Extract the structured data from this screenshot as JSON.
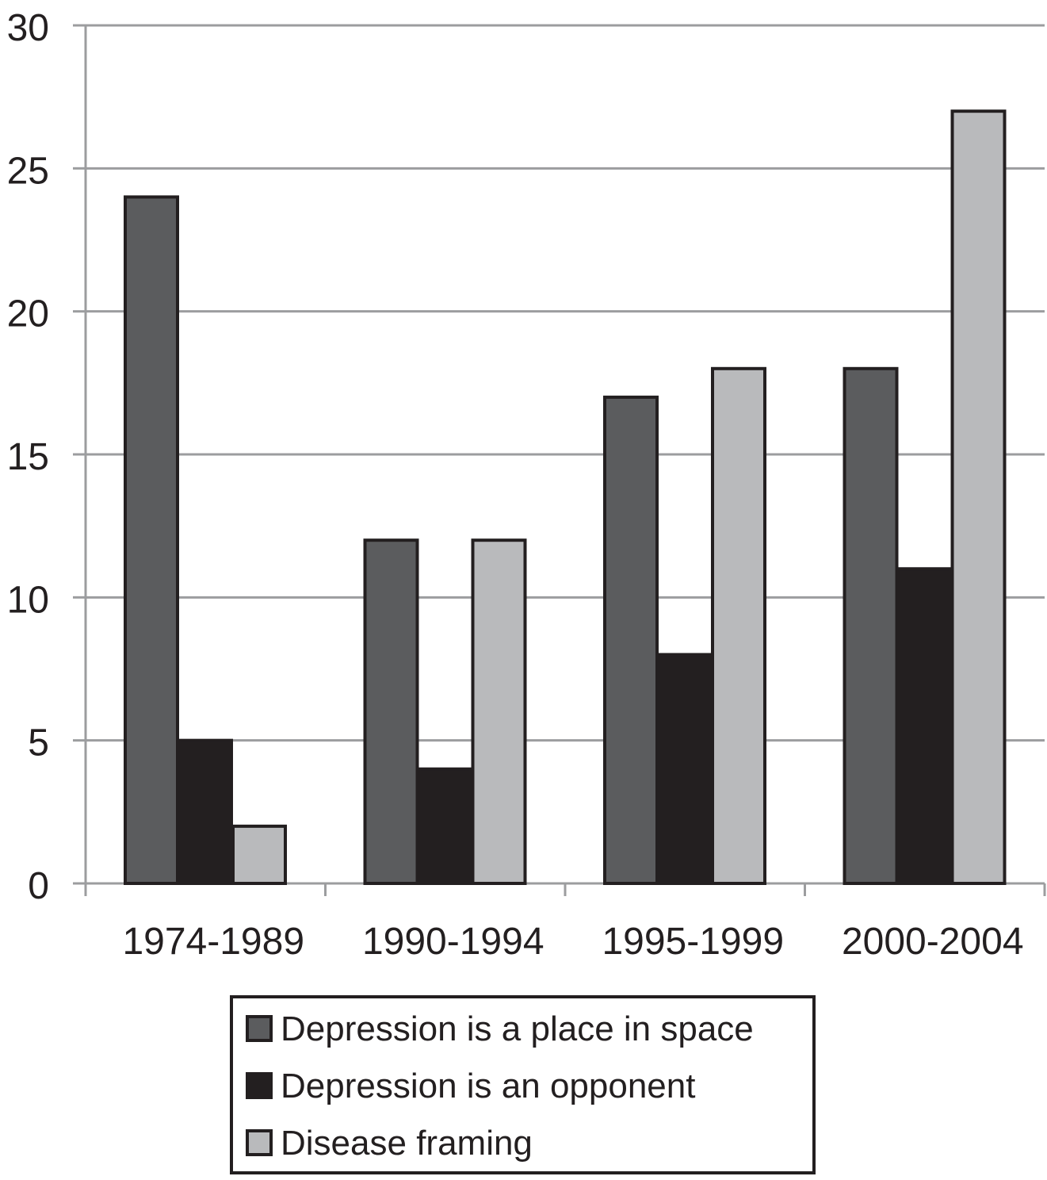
{
  "chart_data": {
    "type": "bar",
    "categories": [
      "1974-1989",
      "1990-1994",
      "1995-1999",
      "2000-2004"
    ],
    "series": [
      {
        "name": "Depression is a place in space",
        "values": [
          24,
          12,
          17,
          18
        ],
        "color": "#5b5c5e"
      },
      {
        "name": "Depression is an opponent",
        "values": [
          5,
          4,
          8,
          11
        ],
        "color": "#231f20"
      },
      {
        "name": "Disease framing",
        "values": [
          2,
          12,
          18,
          27
        ],
        "color": "#b9babc"
      }
    ],
    "ylim": [
      0,
      30
    ],
    "yticks": [
      0,
      5,
      10,
      15,
      20,
      25,
      30
    ],
    "grid": true,
    "legend_position": "bottom",
    "title": "",
    "xlabel": "",
    "ylabel": ""
  }
}
